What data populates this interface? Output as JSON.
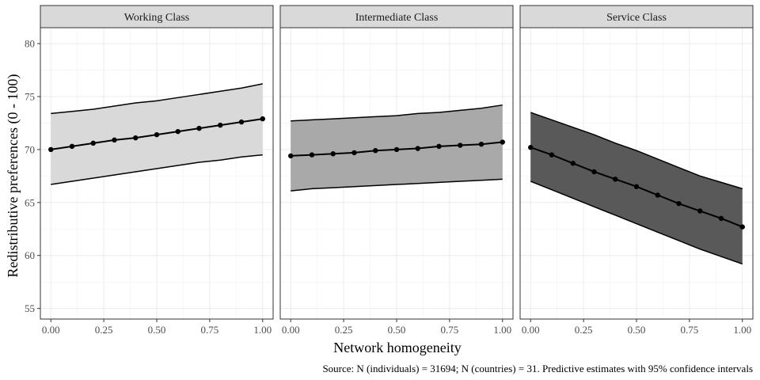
{
  "chart_data": {
    "type": "line",
    "facets": [
      "Working Class",
      "Intermediate Class",
      "Service Class"
    ],
    "xlabel": "Network homogeneity",
    "ylabel": "Redistributive preferences (0 - 100)",
    "xlim": [
      0,
      1
    ],
    "ylim": [
      54,
      81.5
    ],
    "x_ticks": [
      "0.00",
      "0.25",
      "0.50",
      "0.75",
      "1.00"
    ],
    "y_ticks": [
      "55",
      "60",
      "65",
      "70",
      "75",
      "80"
    ],
    "x": [
      0,
      0.1,
      0.2,
      0.3,
      0.4,
      0.5,
      0.6,
      0.7,
      0.8,
      0.9,
      1.0
    ],
    "series": [
      {
        "name": "Working Class",
        "fill": "#d9d9d9",
        "estimate": [
          70.0,
          70.3,
          70.6,
          70.9,
          71.1,
          71.4,
          71.7,
          72.0,
          72.3,
          72.6,
          72.9
        ],
        "lower": [
          66.7,
          67.0,
          67.3,
          67.6,
          67.9,
          68.2,
          68.5,
          68.8,
          69.0,
          69.3,
          69.5
        ],
        "upper": [
          73.4,
          73.6,
          73.8,
          74.1,
          74.4,
          74.6,
          74.9,
          75.2,
          75.5,
          75.8,
          76.2
        ]
      },
      {
        "name": "Intermediate Class",
        "fill": "#a9a9a9",
        "estimate": [
          69.4,
          69.5,
          69.6,
          69.7,
          69.9,
          70.0,
          70.1,
          70.3,
          70.4,
          70.5,
          70.7
        ],
        "lower": [
          66.1,
          66.3,
          66.4,
          66.5,
          66.6,
          66.7,
          66.8,
          66.9,
          67.0,
          67.1,
          67.2
        ],
        "upper": [
          72.7,
          72.8,
          72.9,
          73.0,
          73.1,
          73.2,
          73.4,
          73.5,
          73.7,
          73.9,
          74.2
        ]
      },
      {
        "name": "Service Class",
        "fill": "#595959",
        "estimate": [
          70.2,
          69.5,
          68.7,
          67.9,
          67.2,
          66.5,
          65.7,
          64.9,
          64.2,
          63.5,
          62.7
        ],
        "lower": [
          67.0,
          66.2,
          65.4,
          64.6,
          63.8,
          63.0,
          62.2,
          61.4,
          60.6,
          59.9,
          59.2
        ],
        "upper": [
          73.5,
          72.8,
          72.1,
          71.4,
          70.6,
          69.9,
          69.1,
          68.3,
          67.5,
          66.9,
          66.3
        ]
      }
    ],
    "grid": true,
    "legend": "none",
    "caption": "Source: N (individuals) = 31694; N (countries) = 31. Predictive estimates with 95% confidence intervals"
  }
}
